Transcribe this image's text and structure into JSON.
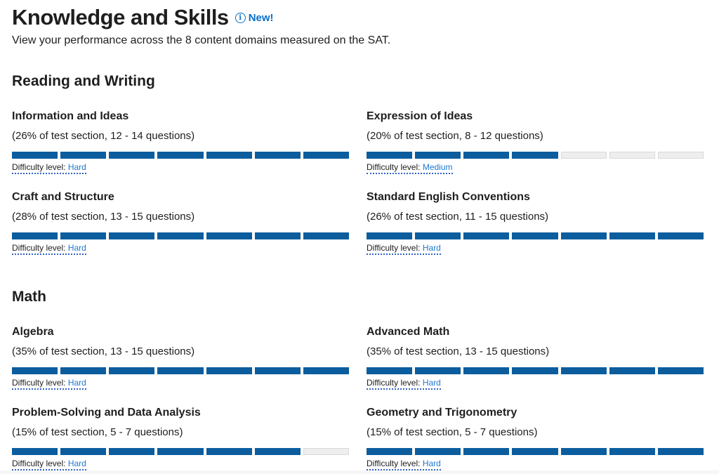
{
  "header": {
    "title": "Knowledge and Skills",
    "badge": "New!",
    "badge_icon": "info-icon",
    "subtitle": "View your performance across the 8 content domains measured on the SAT."
  },
  "colors": {
    "filled_segment": "#0b5d9e",
    "empty_segment": "#eeeeee",
    "accent": "#0a6fc9"
  },
  "difficulty_label": "Difficulty level:",
  "sections": [
    {
      "title": "Reading and Writing",
      "domains": [
        {
          "name": "Information and Ideas",
          "desc": "(26% of test section, 12 - 14 questions)",
          "filled": 7,
          "total": 7,
          "difficulty": "Hard"
        },
        {
          "name": "Expression of Ideas",
          "desc": "(20% of test section, 8 - 12 questions)",
          "filled": 4,
          "total": 7,
          "difficulty": "Medium"
        },
        {
          "name": "Craft and Structure",
          "desc": "(28% of test section, 13 - 15 questions)",
          "filled": 7,
          "total": 7,
          "difficulty": "Hard"
        },
        {
          "name": "Standard English Conventions",
          "desc": "(26% of test section, 11 - 15 questions)",
          "filled": 7,
          "total": 7,
          "difficulty": "Hard"
        }
      ]
    },
    {
      "title": "Math",
      "domains": [
        {
          "name": "Algebra",
          "desc": "(35% of test section, 13 - 15 questions)",
          "filled": 7,
          "total": 7,
          "difficulty": "Hard"
        },
        {
          "name": "Advanced Math",
          "desc": "(35% of test section, 13 - 15 questions)",
          "filled": 7,
          "total": 7,
          "difficulty": "Hard"
        },
        {
          "name": "Problem-Solving and Data Analysis",
          "desc": "(15% of test section, 5 - 7 questions)",
          "filled": 6,
          "total": 7,
          "difficulty": "Hard"
        },
        {
          "name": "Geometry and Trigonometry",
          "desc": "(15% of test section, 5 - 7 questions)",
          "filled": 7,
          "total": 7,
          "difficulty": "Hard"
        }
      ]
    }
  ]
}
